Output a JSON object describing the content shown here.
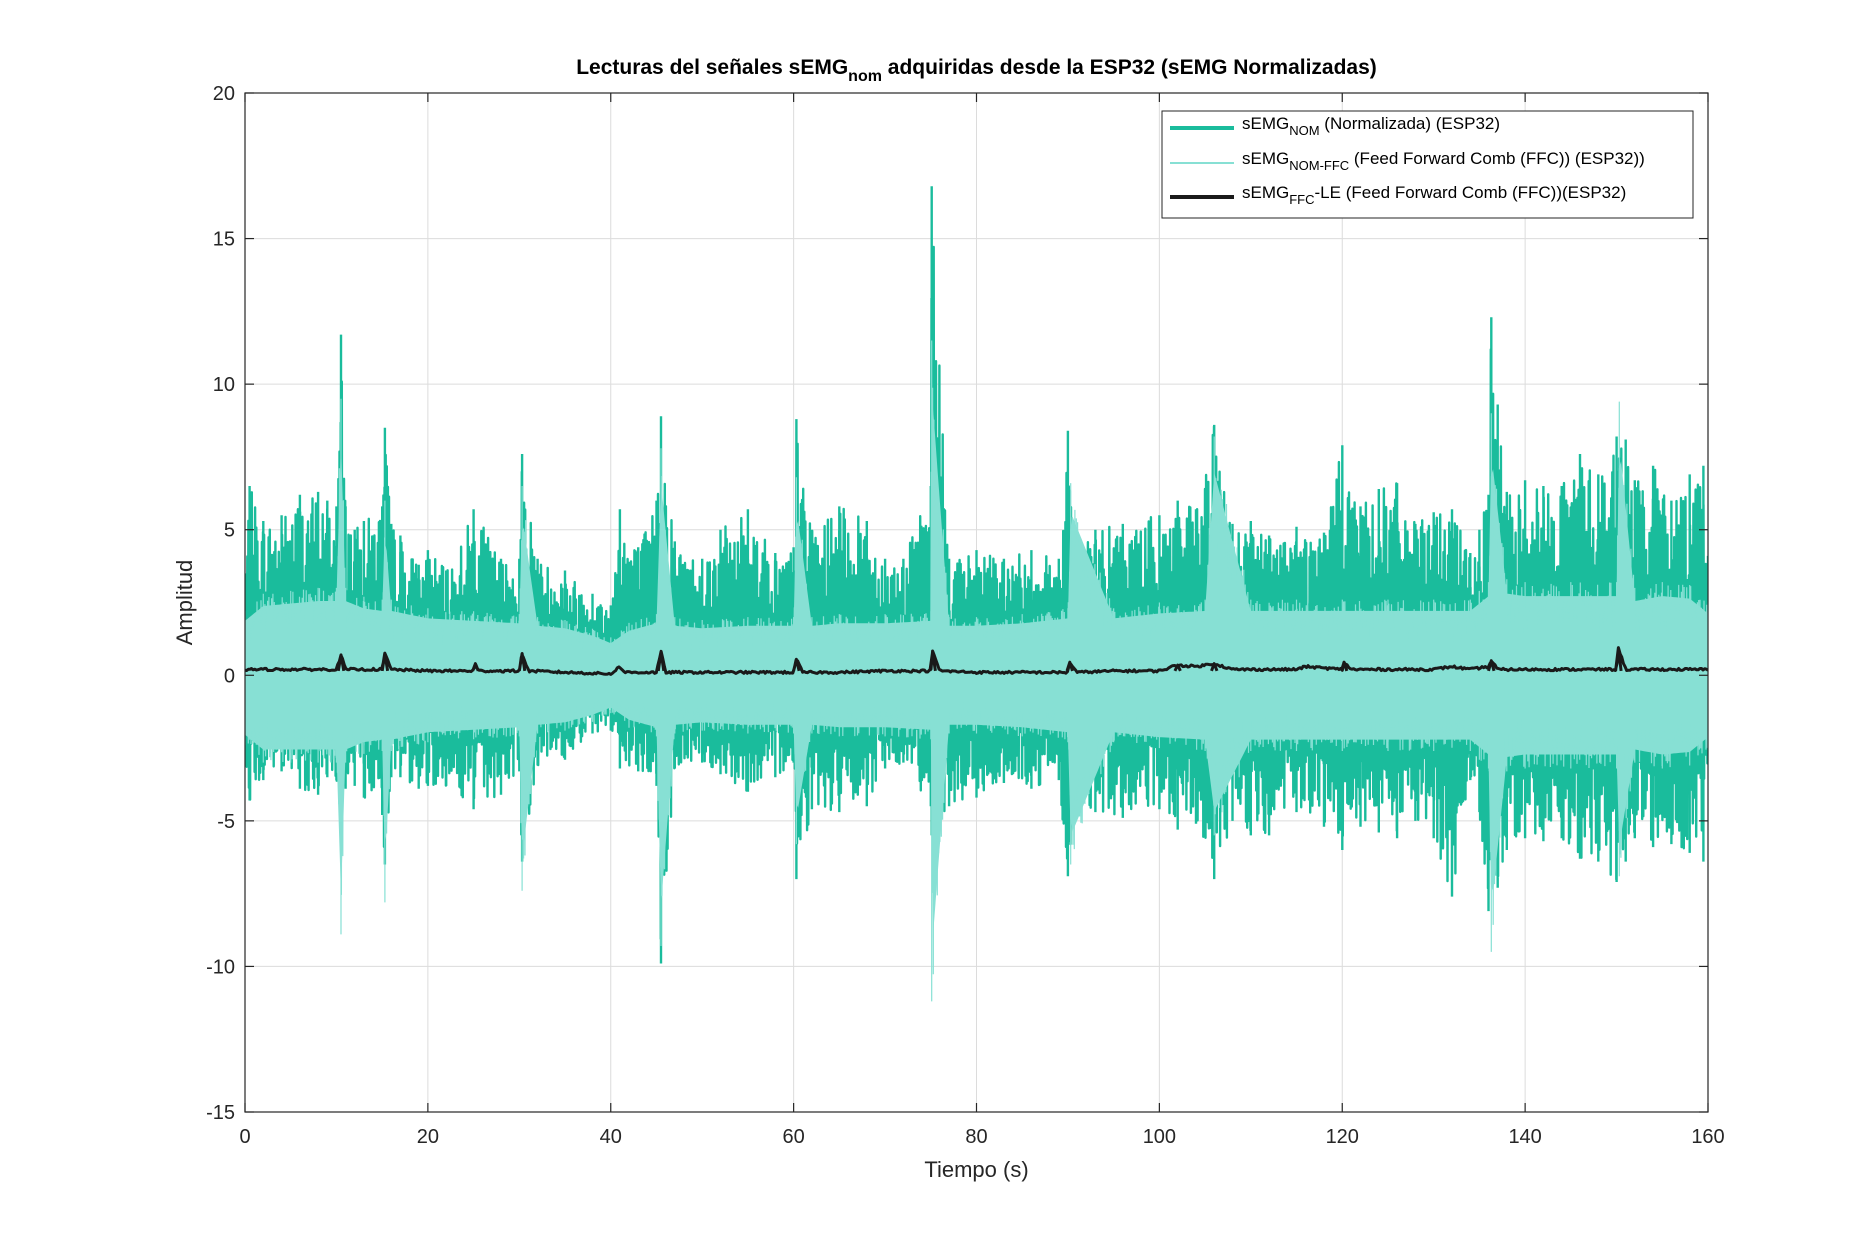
{
  "chart_data": {
    "type": "line",
    "title": {
      "prefix": "Lecturas del señales sEMG",
      "subscript": "nom",
      "suffix": " adquiridas desde la ESP32 (sEMG Normalizadas)"
    },
    "xlabel": "Tiempo (s)",
    "ylabel": "Amplitud",
    "xlim": [
      0,
      160
    ],
    "ylim": [
      -15,
      20
    ],
    "xticks": [
      0,
      20,
      40,
      60,
      80,
      100,
      120,
      140,
      160
    ],
    "yticks": [
      -15,
      -10,
      -5,
      0,
      5,
      10,
      15,
      20
    ],
    "xtick_labels": [
      "0",
      "20",
      "40",
      "60",
      "80",
      "100",
      "120",
      "140",
      "160"
    ],
    "ytick_labels": [
      "-15",
      "-10",
      "-5",
      "0",
      "5",
      "10",
      "15",
      "20"
    ],
    "grid": true,
    "legend_position": "top-right",
    "colors": {
      "nom": "#1abc9c",
      "ffc": "#87e0d4",
      "le": "#1a1a1a"
    },
    "series": [
      {
        "key": "nom",
        "name_base": "sEMG",
        "name_sub": "NOM",
        "name_rest": " (Normalizada) (ESP32)",
        "style": "thick-line",
        "envelope_x": [
          0,
          0.5,
          2,
          4,
          6,
          8,
          9,
          10,
          10.5,
          11,
          12,
          13,
          15,
          15.3,
          16,
          17,
          19,
          20,
          22,
          25,
          28,
          30,
          30.3,
          32,
          35,
          38,
          40,
          41,
          43,
          45,
          45.5,
          47,
          50,
          52,
          55,
          58,
          60,
          60.3,
          62,
          65,
          68,
          70,
          72,
          75,
          75.1,
          77,
          80,
          83,
          86,
          89,
          90,
          91,
          93,
          96,
          100,
          102,
          104,
          106,
          108,
          110,
          112,
          115,
          118,
          120,
          122,
          124,
          126,
          128,
          130,
          132,
          134,
          135,
          136,
          136.3,
          137,
          138,
          140,
          142,
          144,
          146,
          148,
          150,
          151,
          152,
          154,
          156,
          158,
          159.5,
          160
        ],
        "upper": [
          3.5,
          6.5,
          5.3,
          5.5,
          6.2,
          6.3,
          6.0,
          5.8,
          11.7,
          5.8,
          5.0,
          5.3,
          5.8,
          8.5,
          5.2,
          4.8,
          3.8,
          4.3,
          3.6,
          5.7,
          4.0,
          4.0,
          7.6,
          4.0,
          3.6,
          2.8,
          2.4,
          5.7,
          4.4,
          6.0,
          8.9,
          4.6,
          4.0,
          5.0,
          5.7,
          4.2,
          4.4,
          8.8,
          5.0,
          5.8,
          5.3,
          4.0,
          4.0,
          6.5,
          16.8,
          4.0,
          4.3,
          4.0,
          4.3,
          4.0,
          8.4,
          4.5,
          5.0,
          5.2,
          5.5,
          6.0,
          5.7,
          8.6,
          5.2,
          5.3,
          4.8,
          5.1,
          4.9,
          7.9,
          5.8,
          6.4,
          6.6,
          5.2,
          5.6,
          5.7,
          4.2,
          5.0,
          6.2,
          12.3,
          9.3,
          6.3,
          6.7,
          6.5,
          6.5,
          7.6,
          6.9,
          8.2,
          8.1,
          6.7,
          7.2,
          6.0,
          6.9,
          7.2,
          4.1
        ],
        "lower": [
          -2.5,
          -4.3,
          -3.6,
          -3.3,
          -3.9,
          -4.1,
          -3.5,
          -3.6,
          -4.5,
          -3.9,
          -3.8,
          -4.2,
          -4.8,
          -6.5,
          -3.5,
          -3.5,
          -3.9,
          -3.8,
          -3.8,
          -4.6,
          -4.1,
          -3.3,
          -6.4,
          -3.1,
          -2.9,
          -2.0,
          -1.9,
          -3.2,
          -3.3,
          -3.8,
          -9.9,
          -3.2,
          -3.0,
          -3.4,
          -4.0,
          -3.5,
          -3.0,
          -7.0,
          -4.6,
          -4.7,
          -4.5,
          -3.2,
          -3.0,
          -4.5,
          -5.5,
          -4.5,
          -4.2,
          -3.7,
          -3.9,
          -3.6,
          -6.9,
          -4.2,
          -4.7,
          -4.9,
          -4.6,
          -5.3,
          -5.1,
          -7.0,
          -5.0,
          -5.5,
          -5.5,
          -4.7,
          -5.2,
          -6.0,
          -5.2,
          -5.4,
          -5.6,
          -5.0,
          -5.6,
          -7.6,
          -3.6,
          -4.7,
          -8.1,
          -5.8,
          -7.3,
          -6.0,
          -5.6,
          -5.7,
          -5.6,
          -6.3,
          -6.4,
          -7.1,
          -6.4,
          -5.6,
          -5.9,
          -5.8,
          -6.1,
          -6.4,
          -2.8
        ]
      },
      {
        "key": "ffc",
        "name_base": "sEMG",
        "name_sub": "NOM-FFC",
        "name_rest": " (Feed Forward Comb (FFC)) (ESP32))",
        "style": "thin-line",
        "envelope_x": [
          0,
          2,
          5,
          8,
          10,
          10.5,
          11,
          13,
          15,
          15.3,
          16,
          20,
          25,
          30,
          30.3,
          32,
          35,
          38,
          40,
          42,
          45,
          45.5,
          47,
          50,
          55,
          60,
          60.3,
          62,
          65,
          70,
          75,
          75.1,
          77,
          80,
          85,
          90,
          90.3,
          95,
          100,
          105,
          106,
          110,
          115,
          120,
          125,
          130,
          134,
          135,
          136,
          136.3,
          138,
          140,
          145,
          150,
          150.3,
          152,
          155,
          158,
          160
        ],
        "upper": [
          2.2,
          2.8,
          2.9,
          3.0,
          3.0,
          9.5,
          3.0,
          2.7,
          2.6,
          6.0,
          2.6,
          2.3,
          2.2,
          2.1,
          6.5,
          2.0,
          1.9,
          1.6,
          1.3,
          1.8,
          2.1,
          7.8,
          2.0,
          1.9,
          2.0,
          2.0,
          6.8,
          2.0,
          2.1,
          2.1,
          2.2,
          11.5,
          2.0,
          2.0,
          2.1,
          2.3,
          6.6,
          2.3,
          2.5,
          2.6,
          8.2,
          2.6,
          2.6,
          2.6,
          2.6,
          2.6,
          2.6,
          2.9,
          3.2,
          9.0,
          3.3,
          3.2,
          3.2,
          3.2,
          9.4,
          3.0,
          3.2,
          3.1,
          2.5
        ],
        "lower": [
          -2.4,
          -3.0,
          -3.0,
          -3.0,
          -3.0,
          -8.9,
          -3.0,
          -2.7,
          -2.6,
          -7.8,
          -2.6,
          -2.3,
          -2.2,
          -2.1,
          -7.4,
          -2.0,
          -1.9,
          -1.6,
          -1.3,
          -1.8,
          -2.1,
          -9.3,
          -2.0,
          -1.9,
          -2.0,
          -2.0,
          -5.8,
          -2.0,
          -2.1,
          -2.1,
          -2.2,
          -11.2,
          -2.0,
          -2.0,
          -2.1,
          -2.3,
          -6.5,
          -2.3,
          -2.5,
          -2.6,
          -5.5,
          -2.6,
          -2.6,
          -2.6,
          -2.6,
          -2.6,
          -2.6,
          -2.9,
          -3.2,
          -9.5,
          -3.3,
          -3.2,
          -3.2,
          -3.2,
          -6.9,
          -3.0,
          -3.2,
          -3.1,
          -2.5
        ]
      },
      {
        "key": "le",
        "name_base": "sEMG",
        "name_sub": "FFC",
        "name_rest": "-LE (Feed Forward Comb (FFC))(ESP32)",
        "style": "envelope-line",
        "x": [
          0,
          5,
          10,
          10.5,
          11,
          15,
          15.3,
          16,
          20,
          25,
          25.2,
          25.5,
          30,
          30.3,
          31,
          35,
          40,
          41,
          41.5,
          45,
          45.5,
          46,
          50,
          55,
          60,
          60.3,
          61,
          65,
          70,
          75,
          75.2,
          76,
          80,
          85,
          90,
          90.2,
          91,
          95,
          100,
          102,
          104,
          106,
          108,
          110,
          115,
          116,
          120,
          120.2,
          121,
          125,
          130,
          132,
          134,
          136,
          136.3,
          137,
          140,
          145,
          150,
          150.2,
          151,
          155,
          160
        ],
        "y": [
          0.2,
          0.2,
          0.2,
          0.7,
          0.2,
          0.2,
          0.75,
          0.2,
          0.15,
          0.15,
          0.4,
          0.15,
          0.15,
          0.75,
          0.15,
          0.1,
          0.05,
          0.3,
          0.1,
          0.1,
          0.8,
          0.1,
          0.1,
          0.1,
          0.1,
          0.55,
          0.1,
          0.1,
          0.15,
          0.15,
          0.8,
          0.15,
          0.1,
          0.1,
          0.1,
          0.45,
          0.1,
          0.15,
          0.15,
          0.35,
          0.3,
          0.4,
          0.2,
          0.2,
          0.2,
          0.3,
          0.2,
          0.45,
          0.2,
          0.2,
          0.2,
          0.3,
          0.2,
          0.3,
          0.5,
          0.2,
          0.2,
          0.2,
          0.2,
          0.95,
          0.2,
          0.2,
          0.2
        ]
      }
    ]
  }
}
